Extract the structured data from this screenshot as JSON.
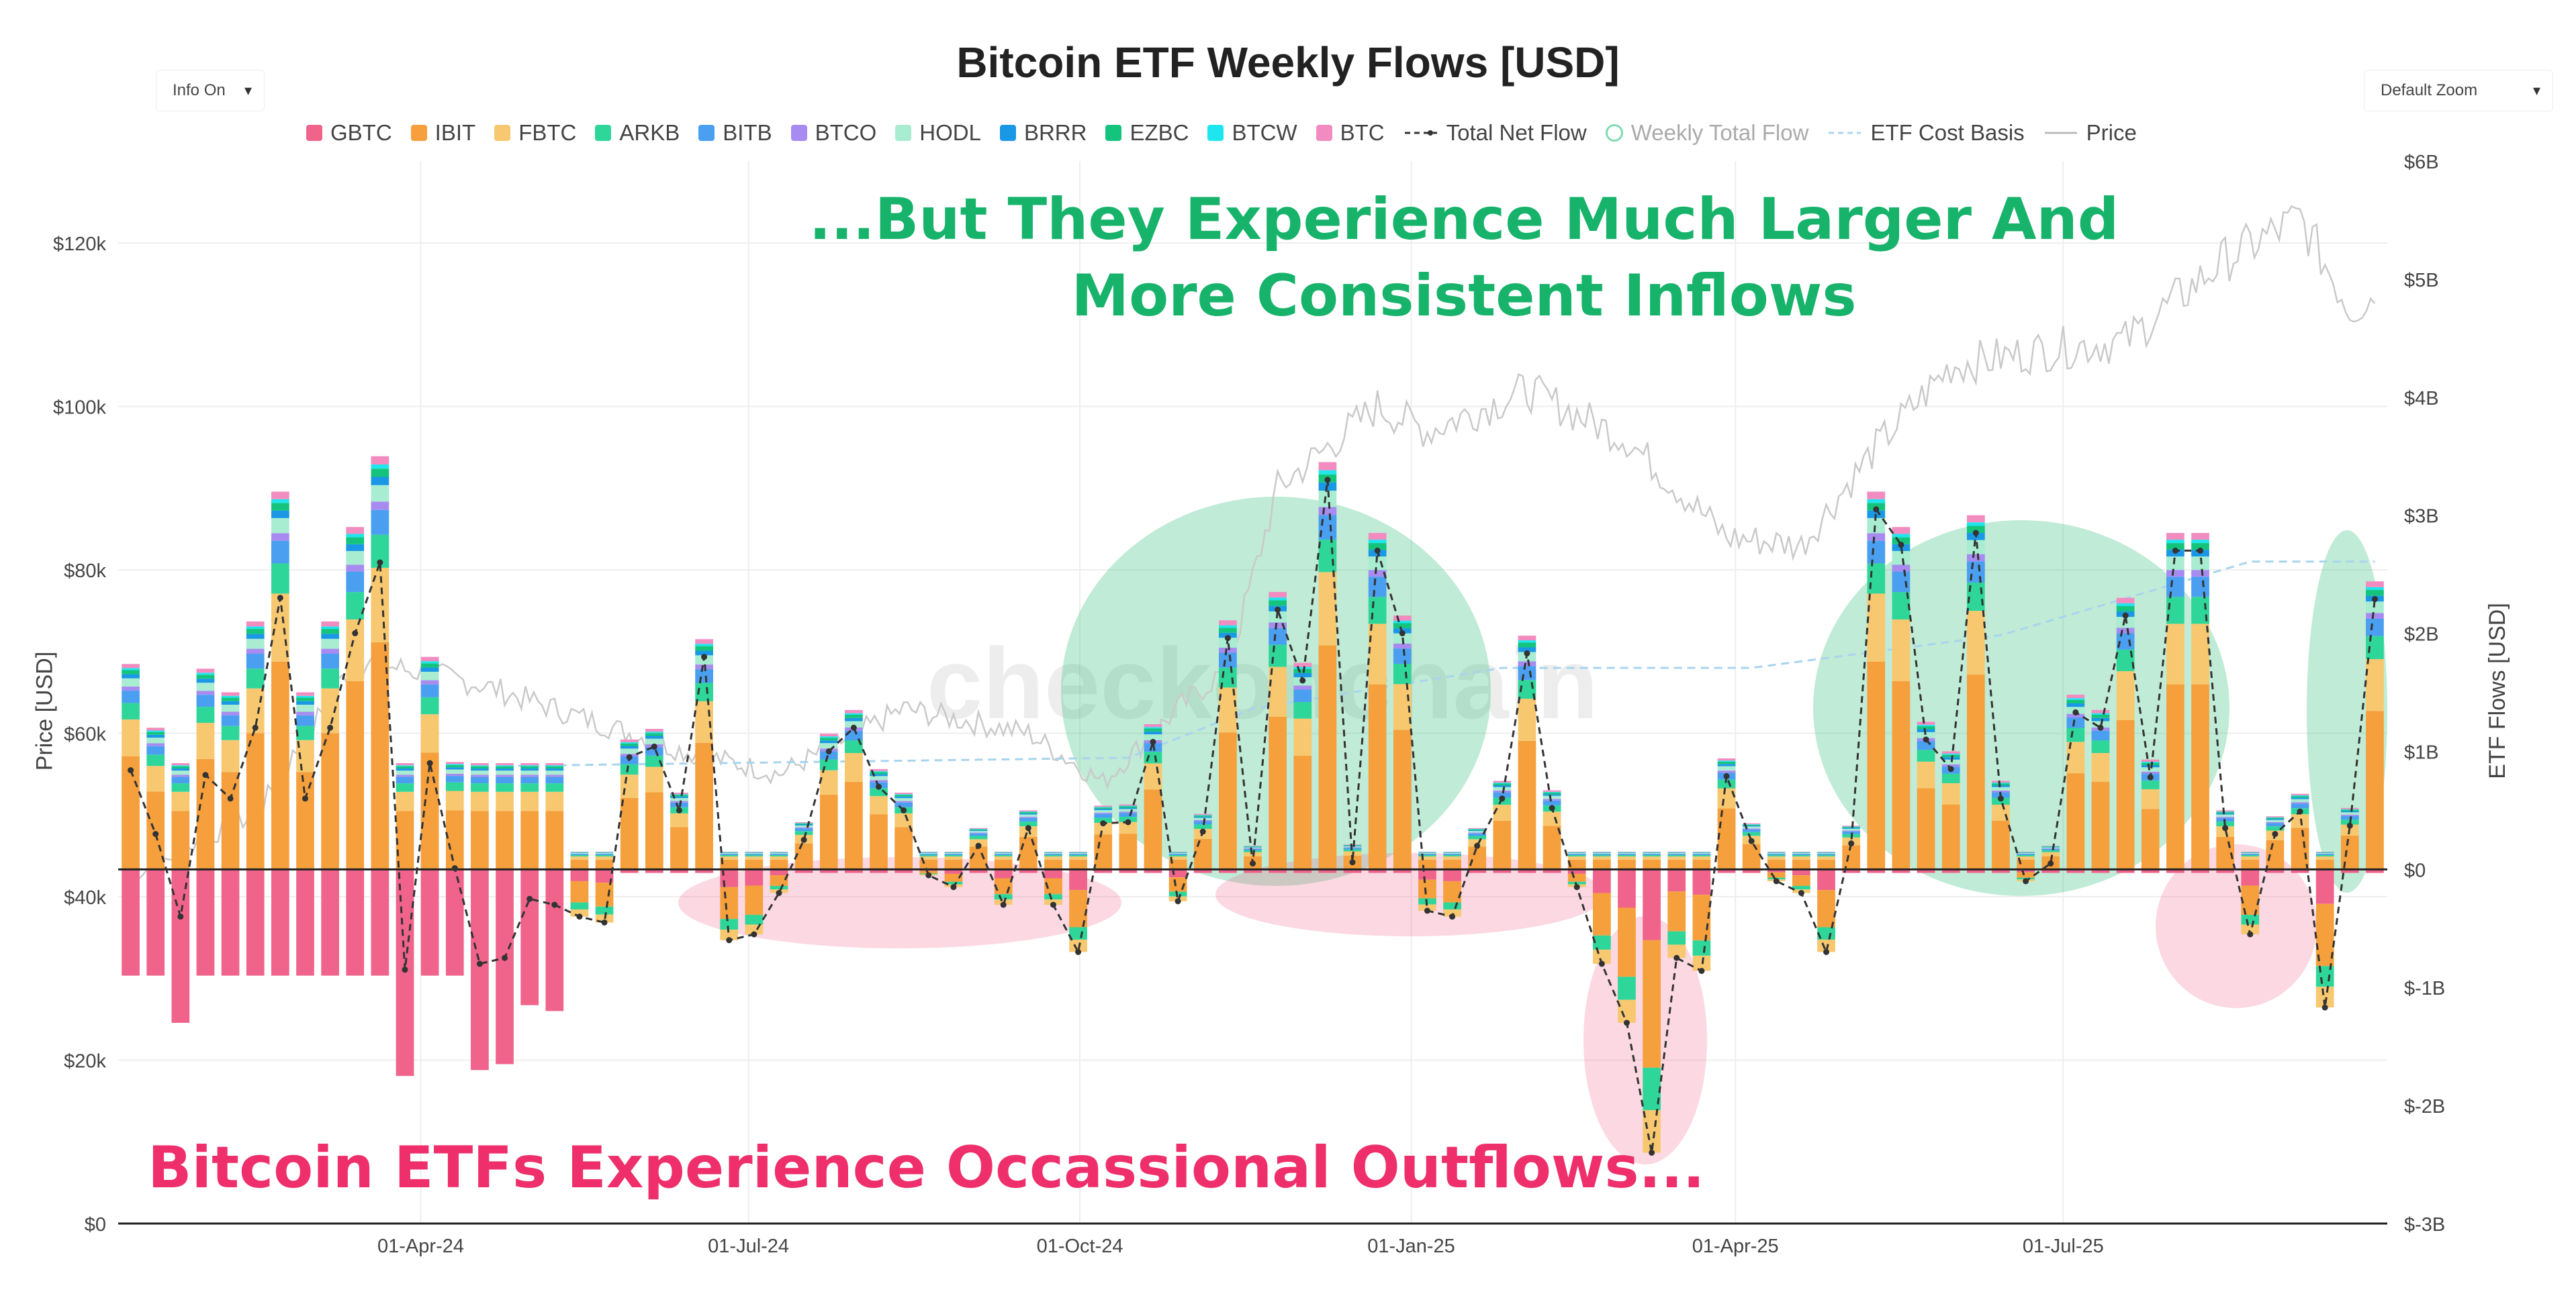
{
  "title": "Bitcoin ETF Weekly Flows [USD]",
  "controls": {
    "info_toggle": "Info On",
    "zoom_select": "Default Zoom"
  },
  "legend": [
    {
      "name": "GBTC",
      "color": "#f0648c",
      "kind": "swatch"
    },
    {
      "name": "IBIT",
      "color": "#f5a03c",
      "kind": "swatch"
    },
    {
      "name": "FBTC",
      "color": "#f8c870",
      "kind": "swatch"
    },
    {
      "name": "ARKB",
      "color": "#2fd69a",
      "kind": "swatch"
    },
    {
      "name": "BITB",
      "color": "#4a9ff0",
      "kind": "swatch"
    },
    {
      "name": "BTCO",
      "color": "#a78bf0",
      "kind": "swatch"
    },
    {
      "name": "HODL",
      "color": "#a8ecd2",
      "kind": "swatch"
    },
    {
      "name": "BRRR",
      "color": "#1a98e6",
      "kind": "swatch"
    },
    {
      "name": "EZBC",
      "color": "#14c47c",
      "kind": "swatch"
    },
    {
      "name": "BTCW",
      "color": "#1fe6ee",
      "kind": "swatch"
    },
    {
      "name": "BTC",
      "color": "#f28cc0",
      "kind": "swatch"
    },
    {
      "name": "Total Net Flow",
      "color": "#333333",
      "kind": "dashline"
    },
    {
      "name": "Weekly Total Flow",
      "color": "#2ec27e",
      "kind": "ring",
      "dimmed": true
    },
    {
      "name": "ETF Cost Basis",
      "color": "#a8d4ee",
      "kind": "lightdash"
    },
    {
      "name": "Price",
      "color": "#bbbbbb",
      "kind": "line"
    }
  ],
  "watermark": "checkonchain",
  "annotations": {
    "top": "...But They Experience Much Larger And More Consistent Inflows",
    "bottom": "Bitcoin ETFs Experience Occassional Outflows..."
  },
  "chart_data": {
    "type": "bar",
    "stacked": true,
    "x_axis": {
      "ticks": [
        "01-Apr-24",
        "01-Jul-24",
        "01-Oct-24",
        "01-Jan-25",
        "01-Apr-25",
        "01-Jul-25"
      ],
      "range": [
        "2024-01-08",
        "2025-09-29"
      ]
    },
    "y_left": {
      "title": "Price [USD]",
      "range": [
        0,
        120000
      ],
      "ticks": [
        "$0",
        "$20k",
        "$40k",
        "$60k",
        "$80k",
        "$100k",
        "$120k"
      ]
    },
    "y_right": {
      "title": "ETF Flows [USD]",
      "range_billions": [
        -3,
        6
      ],
      "ticks": [
        "$-3B",
        "$-2B",
        "$-1B",
        "$0",
        "$1B",
        "$2B",
        "$3B",
        "$4B",
        "$5B",
        "$6B"
      ]
    },
    "gridlines": true,
    "bar_series": [
      "GBTC",
      "IBIT",
      "FBTC",
      "ARKB",
      "BITB",
      "BTCO",
      "HODL",
      "BRRR",
      "EZBC",
      "BTCW",
      "BTC"
    ],
    "net_flow_billions": [
      0.84,
      0.3,
      -0.4,
      0.8,
      0.6,
      1.2,
      2.3,
      0.6,
      1.2,
      2.0,
      2.6,
      -0.85,
      0.9,
      0.01,
      -0.8,
      -0.75,
      -0.25,
      -0.3,
      -0.4,
      -0.45,
      0.95,
      1.04,
      0.5,
      1.8,
      -0.6,
      -0.55,
      -0.2,
      0.25,
      1.0,
      1.2,
      0.7,
      0.5,
      -0.05,
      -0.15,
      0.2,
      -0.3,
      0.35,
      -0.3,
      -0.7,
      0.39,
      0.4,
      1.08,
      -0.27,
      0.32,
      1.96,
      0.05,
      2.2,
      1.6,
      3.3,
      0.06,
      2.7,
      2.0,
      -0.35,
      -0.4,
      0.2,
      0.6,
      1.83,
      0.52,
      -0.15,
      -0.8,
      -1.3,
      -2.4,
      -0.75,
      -0.86,
      0.79,
      0.24,
      -0.1,
      -0.2,
      -0.7,
      0.22,
      3.05,
      2.75,
      1.1,
      0.85,
      2.85,
      0.6,
      -0.1,
      0.05,
      1.33,
      1.2,
      2.15,
      0.78,
      2.7,
      2.7,
      0.35,
      -0.55,
      0.3,
      0.49,
      -1.17,
      0.37,
      2.29
    ],
    "price_usd": {
      "start": 42500,
      "low": 53000,
      "high_2025": 124000,
      "end": 115000
    },
    "etf_cost_basis_usd": {
      "start": 56000,
      "end": 81000
    }
  }
}
